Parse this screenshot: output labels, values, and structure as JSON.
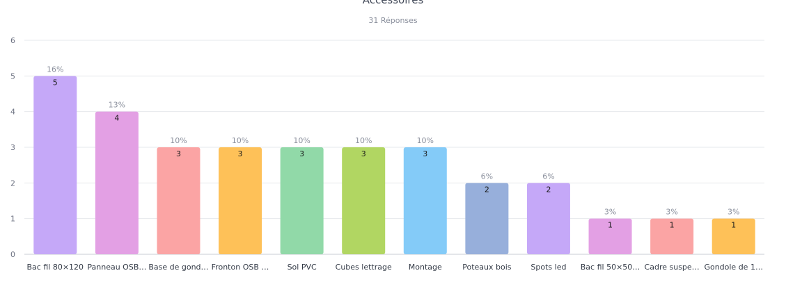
{
  "chart_data": {
    "type": "bar",
    "title": "Accessoires",
    "subtitle": "31 Réponses",
    "xlabel": "",
    "ylabel": "",
    "ylim": [
      0,
      6
    ],
    "yticks": [
      0,
      1,
      2,
      3,
      4,
      5,
      6
    ],
    "grid": true,
    "categories": [
      "Bac fil 80×120",
      "Panneau OSB…",
      "Base de gond…",
      "Fronton OSB …",
      "Sol PVC",
      "Cubes lettrage",
      "Montage",
      "Poteaux bois",
      "Spots led",
      "Bac fil 50×50…",
      "Cadre suspe…",
      "Gondole de 1…"
    ],
    "values": [
      5,
      4,
      3,
      3,
      3,
      3,
      3,
      2,
      2,
      1,
      1,
      1
    ],
    "value_labels": [
      "5",
      "4",
      "3",
      "3",
      "3",
      "3",
      "3",
      "2",
      "2",
      "1",
      "1",
      "1"
    ],
    "percent_labels": [
      "16%",
      "13%",
      "10%",
      "10%",
      "10%",
      "10%",
      "10%",
      "6%",
      "6%",
      "3%",
      "3%",
      "3%"
    ],
    "colors": [
      "#c5a8f8",
      "#e3a0e4",
      "#fba4a4",
      "#fec158",
      "#91d9a8",
      "#b1d662",
      "#84cbf8",
      "#97afdb",
      "#c5a8f8",
      "#e3a0e4",
      "#fba4a4",
      "#fec158"
    ]
  }
}
